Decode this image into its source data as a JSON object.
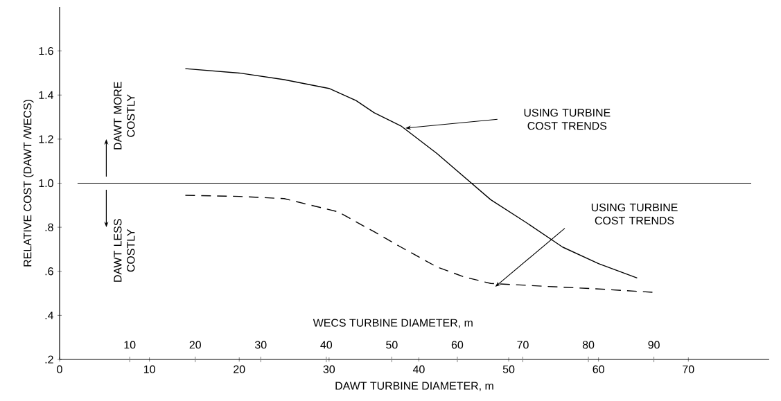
{
  "chart_data": {
    "type": "line",
    "ylabel": "RELATIVE COST (DAWT /WECS)",
    "xlabel": "DAWT TURBINE DIAMETER, m",
    "x2label": "WECS TURBINE DIAMETER, m",
    "xlim": [
      0,
      79
    ],
    "ylim": [
      0.2,
      1.8
    ],
    "x2lim": [
      -0.7,
      107.6
    ],
    "xticks": [
      0,
      10,
      20,
      30,
      40,
      50,
      60,
      70
    ],
    "x2ticks": [
      10,
      20,
      30,
      40,
      50,
      60,
      70,
      80,
      90
    ],
    "yticks": [
      {
        "value": 0.2,
        "label": ".2"
      },
      {
        "value": 0.4,
        "label": ".4"
      },
      {
        "value": 0.6,
        "label": ".6"
      },
      {
        "value": 0.8,
        "label": ".8"
      },
      {
        "value": 1,
        "label": "1.0"
      },
      {
        "value": 1.2,
        "label": "1.2"
      },
      {
        "value": 1.4,
        "label": "1.4"
      },
      {
        "value": 1.6,
        "label": "1.6"
      }
    ],
    "ref_lines": [
      {
        "axis": "y",
        "value": 1.0,
        "color": "#000000"
      }
    ],
    "grid": false,
    "marker": "none",
    "series": [
      {
        "color": "#000000",
        "line_style": "solid",
        "x": [
          14,
          20,
          25,
          30,
          33,
          35,
          38,
          42,
          45,
          48,
          52,
          56,
          60,
          64.3
        ],
        "values": [
          1.52,
          1.5,
          1.47,
          1.43,
          1.375,
          1.32,
          1.26,
          1.135,
          1.03,
          0.925,
          0.82,
          0.71,
          0.635,
          0.57
        ]
      },
      {
        "color": "#000000",
        "line_style": "dashed",
        "x": [
          14,
          20,
          25,
          28,
          31,
          35,
          38,
          42,
          45,
          48,
          55,
          60,
          66
        ],
        "values": [
          0.945,
          0.94,
          0.93,
          0.9,
          0.87,
          0.78,
          0.71,
          0.62,
          0.575,
          0.545,
          0.53,
          0.52,
          0.505
        ]
      }
    ],
    "annotations": [
      "DAWT MORE COSTLY",
      "DAWT LESS COSTLY",
      "USING TURBINE COST TRENDS",
      "USING TURBINE COST TRENDS"
    ]
  }
}
